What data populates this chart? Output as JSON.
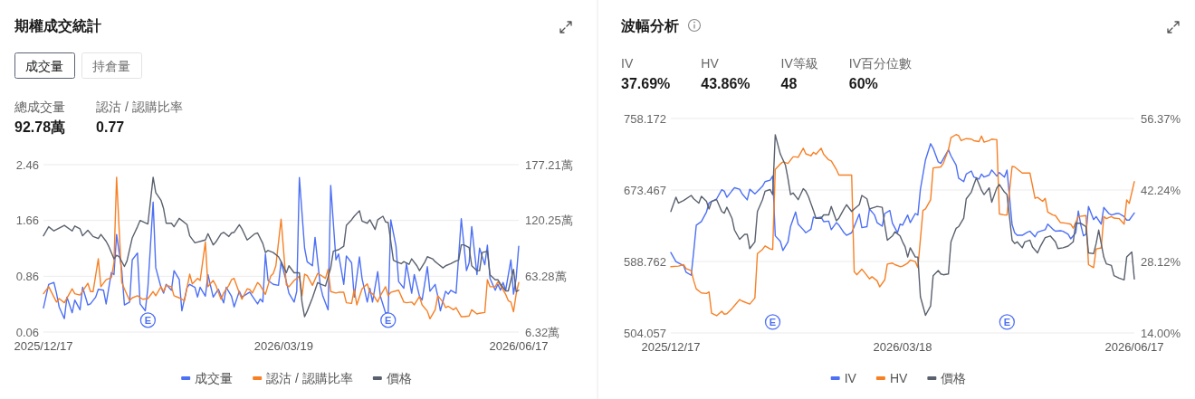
{
  "chart_data": [
    {
      "type": "line",
      "title": "期權成交統計",
      "annotations": [
        "成交量",
        "持倉量",
        "總成交量",
        "92.78萬",
        "認沽 / 認購比率",
        "0.77",
        {
          "text": "E",
          "x": "2026-01-26",
          "y": 0.23
        },
        {
          "text": "E",
          "x": "2026-04-28",
          "y": 0.23
        }
      ],
      "xlim": [
        "2025-12-17",
        "2026-06-17"
      ],
      "xticks": [
        {
          "value": "2025-12-17",
          "label": "2025/12/17"
        },
        {
          "value": "2026-03-19",
          "label": "2026/03/19"
        },
        {
          "value": "2026-06-17",
          "label": "2026/06/17"
        }
      ],
      "ylim": [
        0.06,
        2.46
      ],
      "yticks": [
        0.06,
        0.86,
        1.66,
        2.46
      ],
      "y2lim": [
        6.32,
        177.21
      ],
      "y2ticks": [
        {
          "value": 6.32,
          "label": "6.32萬"
        },
        {
          "value": 63.28,
          "label": "63.28萬"
        },
        {
          "value": 120.25,
          "label": "120.25萬"
        },
        {
          "value": 177.21,
          "label": "177.21萬"
        }
      ],
      "grid": "y",
      "legend": "bottom",
      "series": [
        {
          "name": "成交量",
          "color": "#4d70f5",
          "axis": "y2",
          "x": [
            "2025-12-17",
            "2025-12-19",
            "2025-12-21",
            "2025-12-22",
            "2025-12-23",
            "2025-12-25",
            "2025-12-26",
            "2025-12-28",
            "2025-12-29",
            "2025-12-31",
            "2026-01-01",
            "2026-01-03",
            "2026-01-04",
            "2026-01-06",
            "2026-01-07",
            "2026-01-09",
            "2026-01-10",
            "2026-01-12",
            "2026-01-13",
            "2026-01-14",
            "2026-01-16",
            "2026-01-17",
            "2026-01-19",
            "2026-01-20",
            "2026-01-22",
            "2026-01-23",
            "2026-01-25",
            "2026-01-26",
            "2026-01-28",
            "2026-01-29",
            "2026-01-31",
            "2026-02-01",
            "2026-02-02",
            "2026-02-04",
            "2026-02-05",
            "2026-02-07",
            "2026-02-08",
            "2026-02-10",
            "2026-02-11",
            "2026-02-13",
            "2026-02-14",
            "2026-02-15",
            "2026-02-17",
            "2026-02-18",
            "2026-02-20",
            "2026-02-22",
            "2026-02-24",
            "2026-02-25",
            "2026-02-27",
            "2026-02-28",
            "2026-03-02",
            "2026-03-03",
            "2026-03-06",
            "2026-03-07",
            "2026-03-09",
            "2026-03-10",
            "2026-03-11",
            "2026-03-12",
            "2026-03-13",
            "2026-03-15",
            "2026-03-17",
            "2026-03-18",
            "2026-03-20",
            "2026-03-21",
            "2026-03-23",
            "2026-03-24",
            "2026-03-25",
            "2026-03-27",
            "2026-03-28",
            "2026-03-30",
            "2026-03-31",
            "2026-04-02",
            "2026-04-03",
            "2026-04-05",
            "2026-04-06",
            "2026-04-08",
            "2026-04-09",
            "2026-04-11",
            "2026-04-12",
            "2026-04-14",
            "2026-04-15",
            "2026-04-17",
            "2026-04-18",
            "2026-04-20",
            "2026-04-21",
            "2026-04-22",
            "2026-04-24",
            "2026-04-25",
            "2026-04-27",
            "2026-04-28",
            "2026-04-29",
            "2026-05-01",
            "2026-05-02",
            "2026-05-04",
            "2026-05-05",
            "2026-05-07",
            "2026-05-08",
            "2026-05-10",
            "2026-05-11",
            "2026-05-13",
            "2026-05-14",
            "2026-05-16",
            "2026-05-17",
            "2026-05-18",
            "2026-05-20",
            "2026-05-21",
            "2026-05-22",
            "2026-05-24",
            "2026-05-26",
            "2026-05-28",
            "2026-05-29",
            "2026-05-30",
            "2026-06-01",
            "2026-06-02",
            "2026-06-04",
            "2026-06-05",
            "2026-06-06",
            "2026-06-08",
            "2026-06-09",
            "2026-06-10",
            "2026-06-11",
            "2026-06-12",
            "2026-06-14",
            "2026-06-15",
            "2026-06-16",
            "2026-06-17"
          ],
          "values": [
            31,
            55,
            57,
            46,
            32,
            20,
            42,
            26,
            39,
            29,
            52,
            34,
            35,
            42,
            50,
            49,
            35,
            67,
            65,
            106,
            69,
            34,
            37,
            80,
            87,
            35,
            28,
            52,
            139,
            72,
            52,
            46,
            55,
            49,
            69,
            60,
            28,
            52,
            55,
            52,
            42,
            52,
            43,
            65,
            42,
            50,
            36,
            52,
            43,
            32,
            48,
            42,
            47,
            43,
            35,
            40,
            37,
            86,
            59,
            55,
            54,
            78,
            58,
            46,
            37,
            48,
            164,
            92,
            78,
            74,
            103,
            54,
            43,
            29,
            156,
            80,
            86,
            55,
            84,
            77,
            42,
            83,
            61,
            37,
            51,
            37,
            68,
            43,
            26,
            26,
            121,
            94,
            58,
            51,
            76,
            46,
            65,
            43,
            39,
            73,
            48,
            55,
            43,
            28,
            48,
            45,
            49,
            46,
            122,
            69,
            77,
            114,
            65,
            92,
            75,
            95,
            61,
            49,
            55,
            49,
            57,
            49,
            80,
            45,
            61,
            94
          ]
        },
        {
          "name": "認沽 / 認購比率",
          "color": "#f78025",
          "x": [
            "2025-12-17",
            "2025-12-19",
            "2025-12-22",
            "2025-12-23",
            "2025-12-25",
            "2025-12-28",
            "2025-12-29",
            "2025-12-31",
            "2026-01-03",
            "2026-01-04",
            "2026-01-05",
            "2026-01-07",
            "2026-01-08",
            "2026-01-10",
            "2026-01-12",
            "2026-01-13",
            "2026-01-14",
            "2026-01-16",
            "2026-01-17",
            "2026-01-19",
            "2026-01-20",
            "2026-01-22",
            "2026-01-24",
            "2026-01-26",
            "2026-01-28",
            "2026-01-29",
            "2026-01-31",
            "2026-02-01",
            "2026-02-02",
            "2026-02-04",
            "2026-02-05",
            "2026-02-07",
            "2026-02-09",
            "2026-02-11",
            "2026-02-12",
            "2026-02-14",
            "2026-02-15",
            "2026-02-17",
            "2026-02-18",
            "2026-02-20",
            "2026-02-21",
            "2026-02-23",
            "2026-02-24",
            "2026-02-26",
            "2026-02-27",
            "2026-02-28",
            "2026-03-02",
            "2026-03-03",
            "2026-03-05",
            "2026-03-06",
            "2026-03-07",
            "2026-03-09",
            "2026-03-10",
            "2026-03-12",
            "2026-03-14",
            "2026-03-15",
            "2026-03-16",
            "2026-03-18",
            "2026-03-20",
            "2026-03-21",
            "2026-03-23",
            "2026-03-25",
            "2026-03-26",
            "2026-03-27",
            "2026-03-28",
            "2026-03-30",
            "2026-04-01",
            "2026-04-02",
            "2026-04-04",
            "2026-04-05",
            "2026-04-06",
            "2026-04-08",
            "2026-04-09",
            "2026-04-11",
            "2026-04-12",
            "2026-04-14",
            "2026-04-15",
            "2026-04-16",
            "2026-04-18",
            "2026-04-20",
            "2026-04-21",
            "2026-04-22",
            "2026-04-24",
            "2026-04-25",
            "2026-04-27",
            "2026-04-28",
            "2026-04-29",
            "2026-05-01",
            "2026-05-02",
            "2026-05-04",
            "2026-05-05",
            "2026-05-07",
            "2026-05-08",
            "2026-05-10",
            "2026-05-11",
            "2026-05-13",
            "2026-05-14",
            "2026-05-16",
            "2026-05-17",
            "2026-05-19",
            "2026-05-20",
            "2026-05-21",
            "2026-05-23",
            "2026-05-24",
            "2026-05-26",
            "2026-05-27",
            "2026-05-29",
            "2026-05-30",
            "2026-06-01",
            "2026-06-02",
            "2026-06-04",
            "2026-06-05",
            "2026-06-06",
            "2026-06-08",
            "2026-06-09",
            "2026-06-10",
            "2026-06-12",
            "2026-06-13",
            "2026-06-14",
            "2026-06-15",
            "2026-06-16",
            "2026-06-17"
          ],
          "values": [
            0.61,
            0.71,
            0.49,
            0.54,
            0.48,
            0.68,
            0.61,
            0.59,
            0.76,
            0.64,
            0.64,
            1.11,
            0.71,
            0.81,
            0.84,
            1.05,
            2.28,
            0.77,
            0.68,
            0.51,
            0.55,
            0.58,
            0.53,
            0.54,
            0.64,
            0.58,
            0.71,
            0.64,
            0.73,
            0.71,
            0.58,
            0.55,
            0.51,
            0.89,
            0.75,
            0.83,
            0.8,
            1.35,
            0.71,
            0.8,
            0.73,
            0.53,
            0.62,
            0.73,
            0.81,
            0.83,
            0.62,
            0.53,
            0.68,
            0.67,
            0.62,
            0.77,
            0.73,
            0.6,
            0.86,
            0.9,
            1.01,
            1.68,
            0.74,
            0.71,
            0.8,
            0.86,
            0.58,
            0.89,
            0.87,
            0.73,
            0.9,
            0.88,
            0.83,
            0.96,
            0.64,
            0.62,
            0.63,
            0.63,
            0.48,
            0.47,
            0.67,
            0.45,
            0.68,
            0.75,
            0.63,
            0.61,
            0.49,
            0.58,
            0.71,
            0.58,
            0.63,
            0.65,
            0.66,
            0.49,
            0.48,
            0.49,
            0.45,
            0.57,
            0.45,
            0.36,
            0.25,
            0.38,
            0.58,
            0.49,
            0.41,
            0.43,
            0.38,
            0.41,
            0.28,
            0.28,
            0.29,
            0.38,
            0.32,
            0.33,
            0.34,
            0.81,
            0.71,
            0.71,
            0.78,
            0.73,
            0.6,
            0.51,
            0.49,
            0.35,
            0.6,
            0.77
          ]
        },
        {
          "name": "價格",
          "color": "#5a616e",
          "x": [
            "2025-12-17",
            "2025-12-19",
            "2025-12-21",
            "2025-12-25",
            "2025-12-28",
            "2025-12-29",
            "2025-12-31",
            "2026-01-01",
            "2026-01-03",
            "2026-01-05",
            "2026-01-07",
            "2026-01-08",
            "2026-01-10",
            "2026-01-11",
            "2026-01-13",
            "2026-01-14",
            "2026-01-15",
            "2026-01-17",
            "2026-01-18",
            "2026-01-20",
            "2026-01-22",
            "2026-01-23",
            "2026-01-26",
            "2026-01-28",
            "2026-01-29",
            "2026-01-31",
            "2026-02-01",
            "2026-02-02",
            "2026-02-04",
            "2026-02-05",
            "2026-02-07",
            "2026-02-10",
            "2026-02-11",
            "2026-02-13",
            "2026-02-16",
            "2026-02-17",
            "2026-02-18",
            "2026-02-20",
            "2026-02-21",
            "2026-02-23",
            "2026-02-24",
            "2026-02-26",
            "2026-02-27",
            "2026-02-28",
            "2026-03-02",
            "2026-03-03",
            "2026-03-05",
            "2026-03-06",
            "2026-03-08",
            "2026-03-09",
            "2026-03-11",
            "2026-03-12",
            "2026-03-13",
            "2026-03-15",
            "2026-03-17",
            "2026-03-18",
            "2026-03-20",
            "2026-03-21",
            "2026-03-23",
            "2026-03-25",
            "2026-03-26",
            "2026-03-27",
            "2026-03-28",
            "2026-03-30",
            "2026-04-01",
            "2026-04-02",
            "2026-04-04",
            "2026-04-06",
            "2026-04-07",
            "2026-04-09",
            "2026-04-11",
            "2026-04-12",
            "2026-04-14",
            "2026-04-15",
            "2026-04-17",
            "2026-04-18",
            "2026-04-20",
            "2026-04-21",
            "2026-04-23",
            "2026-04-24",
            "2026-04-26",
            "2026-04-27",
            "2026-04-28",
            "2026-04-30",
            "2026-05-01",
            "2026-05-03",
            "2026-05-04",
            "2026-05-06",
            "2026-05-07",
            "2026-05-09",
            "2026-05-10",
            "2026-05-12",
            "2026-05-13",
            "2026-05-15",
            "2026-05-16",
            "2026-05-17",
            "2026-05-19",
            "2026-05-20",
            "2026-05-22",
            "2026-05-24",
            "2026-05-25",
            "2026-05-26",
            "2026-05-27",
            "2026-05-29",
            "2026-05-30",
            "2026-06-01",
            "2026-06-02",
            "2026-06-03",
            "2026-06-05",
            "2026-06-06",
            "2026-06-08",
            "2026-06-09",
            "2026-06-10",
            "2026-06-12",
            "2026-06-13",
            "2026-06-15",
            "2026-06-16",
            "2026-06-17"
          ],
          "values": [
            1.44,
            1.57,
            1.51,
            1.59,
            1.51,
            1.58,
            1.54,
            1.44,
            1.52,
            1.43,
            1.4,
            1.46,
            1.36,
            1.29,
            1.11,
            1.16,
            1.14,
            1.0,
            1.08,
            1.41,
            1.57,
            1.66,
            1.61,
            2.28,
            2.06,
            1.95,
            1.83,
            1.62,
            1.62,
            1.57,
            1.69,
            1.6,
            1.44,
            1.34,
            1.37,
            1.38,
            1.47,
            1.31,
            1.35,
            1.47,
            1.49,
            1.43,
            1.48,
            1.49,
            1.6,
            1.54,
            1.38,
            1.41,
            1.47,
            1.48,
            1.33,
            1.2,
            1.23,
            1.2,
            1.14,
            1.07,
            0.91,
            1.01,
            0.91,
            0.91,
            0.49,
            0.28,
            0.36,
            0.55,
            0.77,
            0.75,
            0.72,
            0.98,
            1.22,
            1.24,
            1.29,
            1.59,
            1.67,
            1.72,
            1.8,
            1.65,
            1.62,
            1.67,
            1.53,
            1.67,
            1.72,
            1.64,
            1.63,
            1.09,
            1.07,
            1.04,
            1.07,
            1.03,
            1.11,
            1.01,
            0.94,
            1.06,
            1.14,
            1.11,
            1.07,
            1.04,
            0.98,
            1.01,
            1.04,
            1.08,
            1.09,
            1.31,
            1.31,
            1.27,
            1.01,
            0.94,
            0.94,
            1.2,
            1.22,
            0.88,
            0.81,
            0.81,
            0.75,
            0.65,
            0.65,
            0.96,
            0.64,
            0.66
          ]
        }
      ]
    },
    {
      "type": "line",
      "title": "波幅分析",
      "annotations": [
        "IV",
        "37.69%",
        "HV",
        "43.86%",
        "IV等級",
        "48",
        "IV百分位數",
        "60%",
        {
          "text": "E",
          "x": "2026-01-26",
          "y": 517
        },
        {
          "text": "E",
          "x": "2026-04-28",
          "y": 517
        }
      ],
      "xlim": [
        "2025-12-17",
        "2026-06-17"
      ],
      "xticks": [
        {
          "value": "2025-12-17",
          "label": "2025/12/17"
        },
        {
          "value": "2026-03-18",
          "label": "2026/03/18"
        },
        {
          "value": "2026-06-17",
          "label": "2026/06/17"
        }
      ],
      "ylim": [
        504.057,
        758.172
      ],
      "yticks": [
        504.057,
        588.762,
        673.467,
        758.172
      ],
      "y2lim": [
        14,
        56.37
      ],
      "y2ticks": [
        {
          "value": 14,
          "label": "14.00%"
        },
        {
          "value": 28.12,
          "label": "28.12%"
        },
        {
          "value": 42.24,
          "label": "42.24%"
        },
        {
          "value": 56.37,
          "label": "56.37%"
        }
      ],
      "grid": "y",
      "legend": "bottom",
      "series": [
        {
          "name": "IV",
          "color": "#4d70f5",
          "axis": "y2",
          "x": [
            "2025-12-17",
            "2025-12-19",
            "2025-12-22",
            "2025-12-23",
            "2025-12-25",
            "2025-12-26",
            "2025-12-27",
            "2025-12-29",
            "2025-12-31",
            "2026-01-01",
            "2026-01-02",
            "2026-01-04",
            "2026-01-06",
            "2026-01-07",
            "2026-01-08",
            "2026-01-10",
            "2026-01-11",
            "2026-01-13",
            "2026-01-14",
            "2026-01-16",
            "2026-01-17",
            "2026-01-19",
            "2026-01-20",
            "2026-01-22",
            "2026-01-23",
            "2026-01-25",
            "2026-01-26",
            "2026-01-27",
            "2026-01-29",
            "2026-01-30",
            "2026-02-01",
            "2026-02-02",
            "2026-02-04",
            "2026-02-05",
            "2026-02-07",
            "2026-02-08",
            "2026-02-10",
            "2026-02-11",
            "2026-02-12",
            "2026-02-14",
            "2026-02-15",
            "2026-02-17",
            "2026-02-18",
            "2026-02-20",
            "2026-02-21",
            "2026-02-23",
            "2026-02-24",
            "2026-02-26",
            "2026-02-27",
            "2026-03-01",
            "2026-03-02",
            "2026-03-04",
            "2026-03-05",
            "2026-03-07",
            "2026-03-08",
            "2026-03-10",
            "2026-03-11",
            "2026-03-13",
            "2026-03-14",
            "2026-03-16",
            "2026-03-17",
            "2026-03-18",
            "2026-03-20",
            "2026-03-21",
            "2026-03-23",
            "2026-03-24",
            "2026-03-25",
            "2026-03-27",
            "2026-03-29",
            "2026-03-30",
            "2026-04-01",
            "2026-04-02",
            "2026-04-03",
            "2026-04-05",
            "2026-04-06",
            "2026-04-08",
            "2026-04-09",
            "2026-04-11",
            "2026-04-12",
            "2026-04-14",
            "2026-04-15",
            "2026-04-17",
            "2026-04-18",
            "2026-04-19",
            "2026-04-21",
            "2026-04-22",
            "2026-04-24",
            "2026-04-25",
            "2026-04-27",
            "2026-04-28",
            "2026-04-30",
            "2026-05-01",
            "2026-05-02",
            "2026-05-04",
            "2026-05-06",
            "2026-05-07",
            "2026-05-09",
            "2026-05-10",
            "2026-05-11",
            "2026-05-13",
            "2026-05-14",
            "2026-05-16",
            "2026-05-17",
            "2026-05-19",
            "2026-05-20",
            "2026-05-22",
            "2026-05-23",
            "2026-05-25",
            "2026-05-26",
            "2026-05-27",
            "2026-05-28",
            "2026-05-29",
            "2026-05-30",
            "2026-06-01",
            "2026-06-02",
            "2026-06-04",
            "2026-06-05",
            "2026-06-07",
            "2026-06-08",
            "2026-06-10",
            "2026-06-11",
            "2026-06-13",
            "2026-06-14",
            "2026-06-15",
            "2026-06-17"
          ],
          "values": [
            29.9,
            28.1,
            27.3,
            26.0,
            25.4,
            30.2,
            35.3,
            36.0,
            37.9,
            39.7,
            40.0,
            40.5,
            42.3,
            42.0,
            40.8,
            42.1,
            42.7,
            42.4,
            41.5,
            40.3,
            42.4,
            41.5,
            42.0,
            43.0,
            43.9,
            44.2,
            45.0,
            33.2,
            32.1,
            30.3,
            32.0,
            35.0,
            37.9,
            35.5,
            34.4,
            33.8,
            34.5,
            36.9,
            36.7,
            36.9,
            36.0,
            36.1,
            34.4,
            35.8,
            35.3,
            33.8,
            33.3,
            33.8,
            35.0,
            37.5,
            34.8,
            35.0,
            38.5,
            37.3,
            35.8,
            35.1,
            37.6,
            38.2,
            35.7,
            33.8,
            35.5,
            35.3,
            37.3,
            35.8,
            37.6,
            37.3,
            42.4,
            48.2,
            51.4,
            50.5,
            47.8,
            47.5,
            48.4,
            50.2,
            49.0,
            47.2,
            44.6,
            43.9,
            45.4,
            46.0,
            44.8,
            44.4,
            45.4,
            44.8,
            45.2,
            46.2,
            45.0,
            45.7,
            44.8,
            46.2,
            35.4,
            33.8,
            33.3,
            33.3,
            33.9,
            34.1,
            33.0,
            33.9,
            34.1,
            34.4,
            35.5,
            34.5,
            34.1,
            34.2,
            34.1,
            33.5,
            32.6,
            33.8,
            38.1,
            35.3,
            33.2,
            33.5,
            39.0,
            36.4,
            37.0,
            35.5,
            38.8,
            37.6,
            37.3,
            37.6,
            37.6,
            37.0,
            36.3,
            36.3,
            37.7
          ]
        },
        {
          "name": "HV",
          "color": "#f78025",
          "axis": "y2",
          "x": [
            "2025-12-17",
            "2025-12-20",
            "2025-12-22",
            "2025-12-23",
            "2025-12-25",
            "2025-12-26",
            "2025-12-27",
            "2025-12-29",
            "2025-12-31",
            "2026-01-01",
            "2026-01-02",
            "2026-01-04",
            "2026-01-06",
            "2026-01-07",
            "2026-01-08",
            "2026-01-10",
            "2026-01-11",
            "2026-01-13",
            "2026-01-14",
            "2026-01-17",
            "2026-01-19",
            "2026-01-20",
            "2026-01-22",
            "2026-01-23",
            "2026-01-25",
            "2026-01-26",
            "2026-01-27",
            "2026-01-29",
            "2026-01-30",
            "2026-02-01",
            "2026-02-03",
            "2026-02-04",
            "2026-02-05",
            "2026-02-07",
            "2026-02-08",
            "2026-02-10",
            "2026-02-11",
            "2026-02-12",
            "2026-02-14",
            "2026-02-15",
            "2026-02-17",
            "2026-02-18",
            "2026-02-20",
            "2026-02-21",
            "2026-02-26",
            "2026-02-27",
            "2026-02-28",
            "2026-03-02",
            "2026-03-03",
            "2026-03-05",
            "2026-03-06",
            "2026-03-08",
            "2026-03-09",
            "2026-03-11",
            "2026-03-12",
            "2026-03-14",
            "2026-03-15",
            "2026-03-17",
            "2026-03-18",
            "2026-03-20",
            "2026-03-21",
            "2026-03-23",
            "2026-03-24",
            "2026-03-26",
            "2026-03-27",
            "2026-03-29",
            "2026-03-30",
            "2026-04-02",
            "2026-04-03",
            "2026-04-05",
            "2026-04-06",
            "2026-04-08",
            "2026-04-09",
            "2026-04-10",
            "2026-04-12",
            "2026-04-14",
            "2026-04-15",
            "2026-04-17",
            "2026-04-18",
            "2026-04-19",
            "2026-04-21",
            "2026-04-22",
            "2026-04-24",
            "2026-04-25",
            "2026-04-27",
            "2026-04-28",
            "2026-04-30",
            "2026-05-01",
            "2026-05-02",
            "2026-05-04",
            "2026-05-07",
            "2026-05-09",
            "2026-05-10",
            "2026-05-12",
            "2026-05-13",
            "2026-05-14",
            "2026-05-16",
            "2026-05-17",
            "2026-05-19",
            "2026-05-21",
            "2026-05-23",
            "2026-05-24",
            "2026-05-26",
            "2026-05-29",
            "2026-05-30",
            "2026-06-01",
            "2026-06-02",
            "2026-06-04",
            "2026-06-05",
            "2026-06-06",
            "2026-06-08",
            "2026-06-09",
            "2026-06-11",
            "2026-06-13",
            "2026-06-14",
            "2026-06-15",
            "2026-06-17"
          ],
          "values": [
            27.1,
            27.2,
            27.5,
            26.7,
            26.3,
            24.3,
            22.7,
            21.9,
            21.8,
            22.1,
            17.9,
            17.4,
            18.3,
            17.7,
            17.8,
            18.8,
            19.4,
            20.6,
            20.3,
            19.7,
            20.9,
            29.7,
            30.5,
            31.2,
            30.6,
            30.5,
            46.3,
            47.4,
            47.8,
            47.5,
            48.8,
            48.8,
            48.7,
            50.5,
            49.4,
            49.0,
            49.7,
            49.3,
            50.5,
            49.3,
            48.2,
            48.0,
            46.3,
            45.2,
            45.2,
            26.1,
            25.5,
            26.6,
            26.0,
            24.7,
            25.1,
            24.3,
            23.1,
            24.5,
            27.6,
            27.8,
            27.5,
            27.1,
            27.2,
            27.8,
            28.4,
            28.1,
            26.9,
            38.2,
            38.5,
            40.3,
            46.6,
            46.8,
            47.5,
            50.2,
            52.6,
            53.2,
            53.0,
            52.0,
            52.4,
            52.3,
            52.0,
            51.8,
            52.9,
            51.7,
            52.0,
            52.3,
            52.2,
            37.5,
            37.3,
            37.3,
            46.9,
            46.8,
            46.4,
            45.6,
            45.6,
            40.6,
            40.8,
            40.0,
            40.6,
            37.9,
            37.3,
            37.2,
            35.8,
            35.7,
            35.5,
            34.7,
            37.0,
            37.2,
            27.5,
            26.9,
            30.6,
            30.8,
            37.0,
            36.6,
            37.0,
            36.7,
            36.6,
            35.5,
            40.3,
            39.6,
            43.9
          ]
        },
        {
          "name": "價格",
          "color": "#5a616e",
          "x": [
            "2025-12-17",
            "2025-12-19",
            "2025-12-20",
            "2025-12-22",
            "2025-12-25",
            "2025-12-26",
            "2025-12-28",
            "2025-12-29",
            "2025-12-31",
            "2026-01-01",
            "2026-01-02",
            "2026-01-04",
            "2026-01-06",
            "2026-01-07",
            "2026-01-08",
            "2026-01-10",
            "2026-01-11",
            "2026-01-13",
            "2026-01-15",
            "2026-01-16",
            "2026-01-17",
            "2026-01-19",
            "2026-01-20",
            "2026-01-22",
            "2026-01-23",
            "2026-01-25",
            "2026-01-26",
            "2026-01-27",
            "2026-01-29",
            "2026-01-31",
            "2026-02-01",
            "2026-02-02",
            "2026-02-03",
            "2026-02-05",
            "2026-02-07",
            "2026-02-08",
            "2026-02-09",
            "2026-02-11",
            "2026-02-12",
            "2026-02-14",
            "2026-02-15",
            "2026-02-17",
            "2026-02-18",
            "2026-02-20",
            "2026-02-21",
            "2026-02-23",
            "2026-02-24",
            "2026-02-26",
            "2026-02-27",
            "2026-03-01",
            "2026-03-02",
            "2026-03-04",
            "2026-03-05",
            "2026-03-07",
            "2026-03-08",
            "2026-03-10",
            "2026-03-11",
            "2026-03-12",
            "2026-03-14",
            "2026-03-15",
            "2026-03-17",
            "2026-03-18",
            "2026-03-19",
            "2026-03-20",
            "2026-03-21",
            "2026-03-23",
            "2026-03-24",
            "2026-03-25",
            "2026-03-27",
            "2026-03-29",
            "2026-03-30",
            "2026-04-01",
            "2026-04-02",
            "2026-04-03",
            "2026-04-05",
            "2026-04-06",
            "2026-04-08",
            "2026-04-09",
            "2026-04-11",
            "2026-04-12",
            "2026-04-14",
            "2026-04-15",
            "2026-04-16",
            "2026-04-18",
            "2026-04-19",
            "2026-04-21",
            "2026-04-22",
            "2026-04-24",
            "2026-04-25",
            "2026-04-27",
            "2026-04-28",
            "2026-04-30",
            "2026-05-01",
            "2026-05-02",
            "2026-05-04",
            "2026-05-05",
            "2026-05-07",
            "2026-05-08",
            "2026-05-10",
            "2026-05-11",
            "2026-05-13",
            "2026-05-15",
            "2026-05-17",
            "2026-05-18",
            "2026-05-20",
            "2026-05-22",
            "2026-05-24",
            "2026-05-25",
            "2026-05-27",
            "2026-05-29",
            "2026-05-30",
            "2026-06-01",
            "2026-06-02",
            "2026-06-03",
            "2026-06-05",
            "2026-06-06",
            "2026-06-08",
            "2026-06-09",
            "2026-06-11",
            "2026-06-13",
            "2026-06-14",
            "2026-06-16",
            "2026-06-17"
          ],
          "values": [
            648,
            665,
            658,
            661,
            667,
            663,
            658,
            666,
            660,
            651,
            660,
            662,
            648,
            646,
            653,
            640,
            626,
            615,
            621,
            621,
            604,
            612,
            648,
            662,
            672,
            674,
            668,
            739,
            716,
            703,
            687,
            668,
            670,
            662,
            675,
            672,
            666,
            649,
            640,
            640,
            644,
            644,
            654,
            637,
            640,
            651,
            656,
            648,
            651,
            656,
            667,
            663,
            651,
            653,
            654,
            653,
            632,
            614,
            619,
            624,
            619,
            612,
            606,
            594,
            605,
            594,
            594,
            547,
            525,
            536,
            572,
            578,
            574,
            573,
            574,
            612,
            628,
            630,
            640,
            663,
            671,
            680,
            688,
            673,
            668,
            676,
            659,
            676,
            680,
            671,
            668,
            614,
            610,
            612,
            605,
            612,
            614,
            606,
            599,
            606,
            617,
            619,
            612,
            604,
            605,
            607,
            612,
            634,
            634,
            630,
            599,
            598,
            610,
            626,
            594,
            586,
            584,
            572,
            569,
            567,
            594,
            600,
            568
          ]
        }
      ]
    }
  ]
}
